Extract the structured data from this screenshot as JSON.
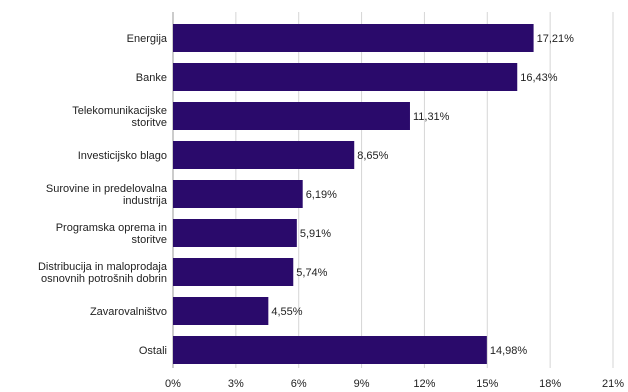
{
  "chart_data": {
    "type": "bar",
    "orientation": "horizontal",
    "categories": [
      [
        "Energija"
      ],
      [
        "Banke"
      ],
      [
        "Telekomunikacijske",
        "storitve"
      ],
      [
        "Investicijsko blago"
      ],
      [
        "Surovine in predelovalna",
        "industrija"
      ],
      [
        "Programska oprema in",
        "storitve"
      ],
      [
        "Distribucija in maloprodaja",
        "osnovnih potrošnih dobrin"
      ],
      [
        "Zavarovalništvo"
      ],
      [
        "Ostali"
      ]
    ],
    "values": [
      17.21,
      16.43,
      11.31,
      8.65,
      6.19,
      5.91,
      5.74,
      4.55,
      14.98
    ],
    "value_labels": [
      "17,21%",
      "16,43%",
      "11,31%",
      "8,65%",
      "6,19%",
      "5,91%",
      "5,74%",
      "4,55%",
      "14,98%"
    ],
    "xlim": [
      0,
      21
    ],
    "x_ticks": [
      0,
      3,
      6,
      9,
      12,
      15,
      18,
      21
    ],
    "x_tick_labels": [
      "0%",
      "3%",
      "6%",
      "9%",
      "12%",
      "15%",
      "18%",
      "21%"
    ],
    "grid": "vertical",
    "bar_color": "#2a0a6b",
    "grid_color": "#d6d6d6"
  }
}
